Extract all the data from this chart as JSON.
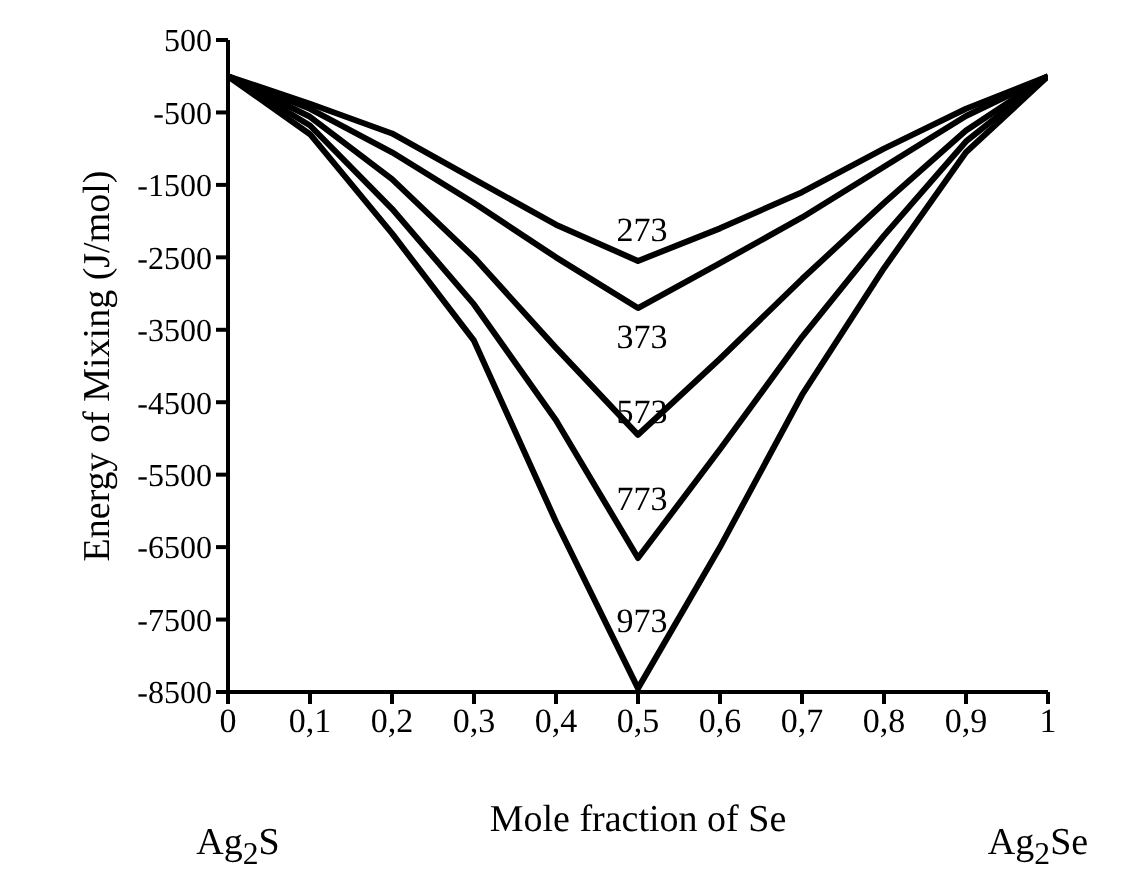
{
  "chart_data": {
    "type": "line",
    "xlabel": "Mole fraction of Se",
    "ylabel": "Energy of Mixing (J/mol)",
    "annotations": [
      "Ag$_{2}$S",
      "Ag$_{2}$Se"
    ],
    "x": [
      0,
      0.1,
      0.2,
      0.3,
      0.4,
      0.5,
      0.6,
      0.7,
      0.8,
      0.9,
      1
    ],
    "series": [
      {
        "name": "273",
        "color": "#000000",
        "values": [
          0,
          -380,
          -790,
          -1420,
          -2050,
          -2550,
          -2100,
          -1600,
          -1000,
          -450,
          0
        ]
      },
      {
        "name": "373",
        "color": "#000000",
        "values": [
          0,
          -450,
          -1050,
          -1750,
          -2500,
          -3200,
          -2580,
          -1950,
          -1250,
          -550,
          0
        ]
      },
      {
        "name": "573",
        "color": "#000000",
        "values": [
          0,
          -560,
          -1420,
          -2500,
          -3750,
          -4950,
          -3900,
          -2800,
          -1750,
          -750,
          0
        ]
      },
      {
        "name": "773",
        "color": "#000000",
        "values": [
          0,
          -680,
          -1830,
          -3150,
          -4750,
          -6650,
          -5150,
          -3600,
          -2200,
          -900,
          0
        ]
      },
      {
        "name": "973",
        "color": "#000000",
        "values": [
          0,
          -800,
          -2170,
          -3650,
          -6150,
          -8450,
          -6500,
          -4400,
          -2650,
          -1050,
          0
        ]
      }
    ],
    "xlim": [
      0,
      1
    ],
    "xticks": [
      0,
      {
        "value": 0.1,
        "label": "0,1"
      },
      {
        "value": 0.2,
        "label": "0,2"
      },
      {
        "value": 0.3,
        "label": "0,3"
      },
      {
        "value": 0.4,
        "label": "0,4"
      },
      {
        "value": 0.5,
        "label": "0,5"
      },
      {
        "value": 0.6,
        "label": "0,6"
      },
      {
        "value": 0.7,
        "label": "0,7"
      },
      {
        "value": 0.8,
        "label": "0,8"
      },
      {
        "value": 0.9,
        "label": "0,9"
      },
      1
    ],
    "ylim": [
      -8500,
      500
    ],
    "yticks": [
      500,
      -500,
      -1500,
      -2500,
      -3500,
      -4500,
      -5500,
      -6500,
      -7500,
      -8500
    ],
    "grid": false,
    "legend": false,
    "marker": "none",
    "line_style": "solid"
  }
}
